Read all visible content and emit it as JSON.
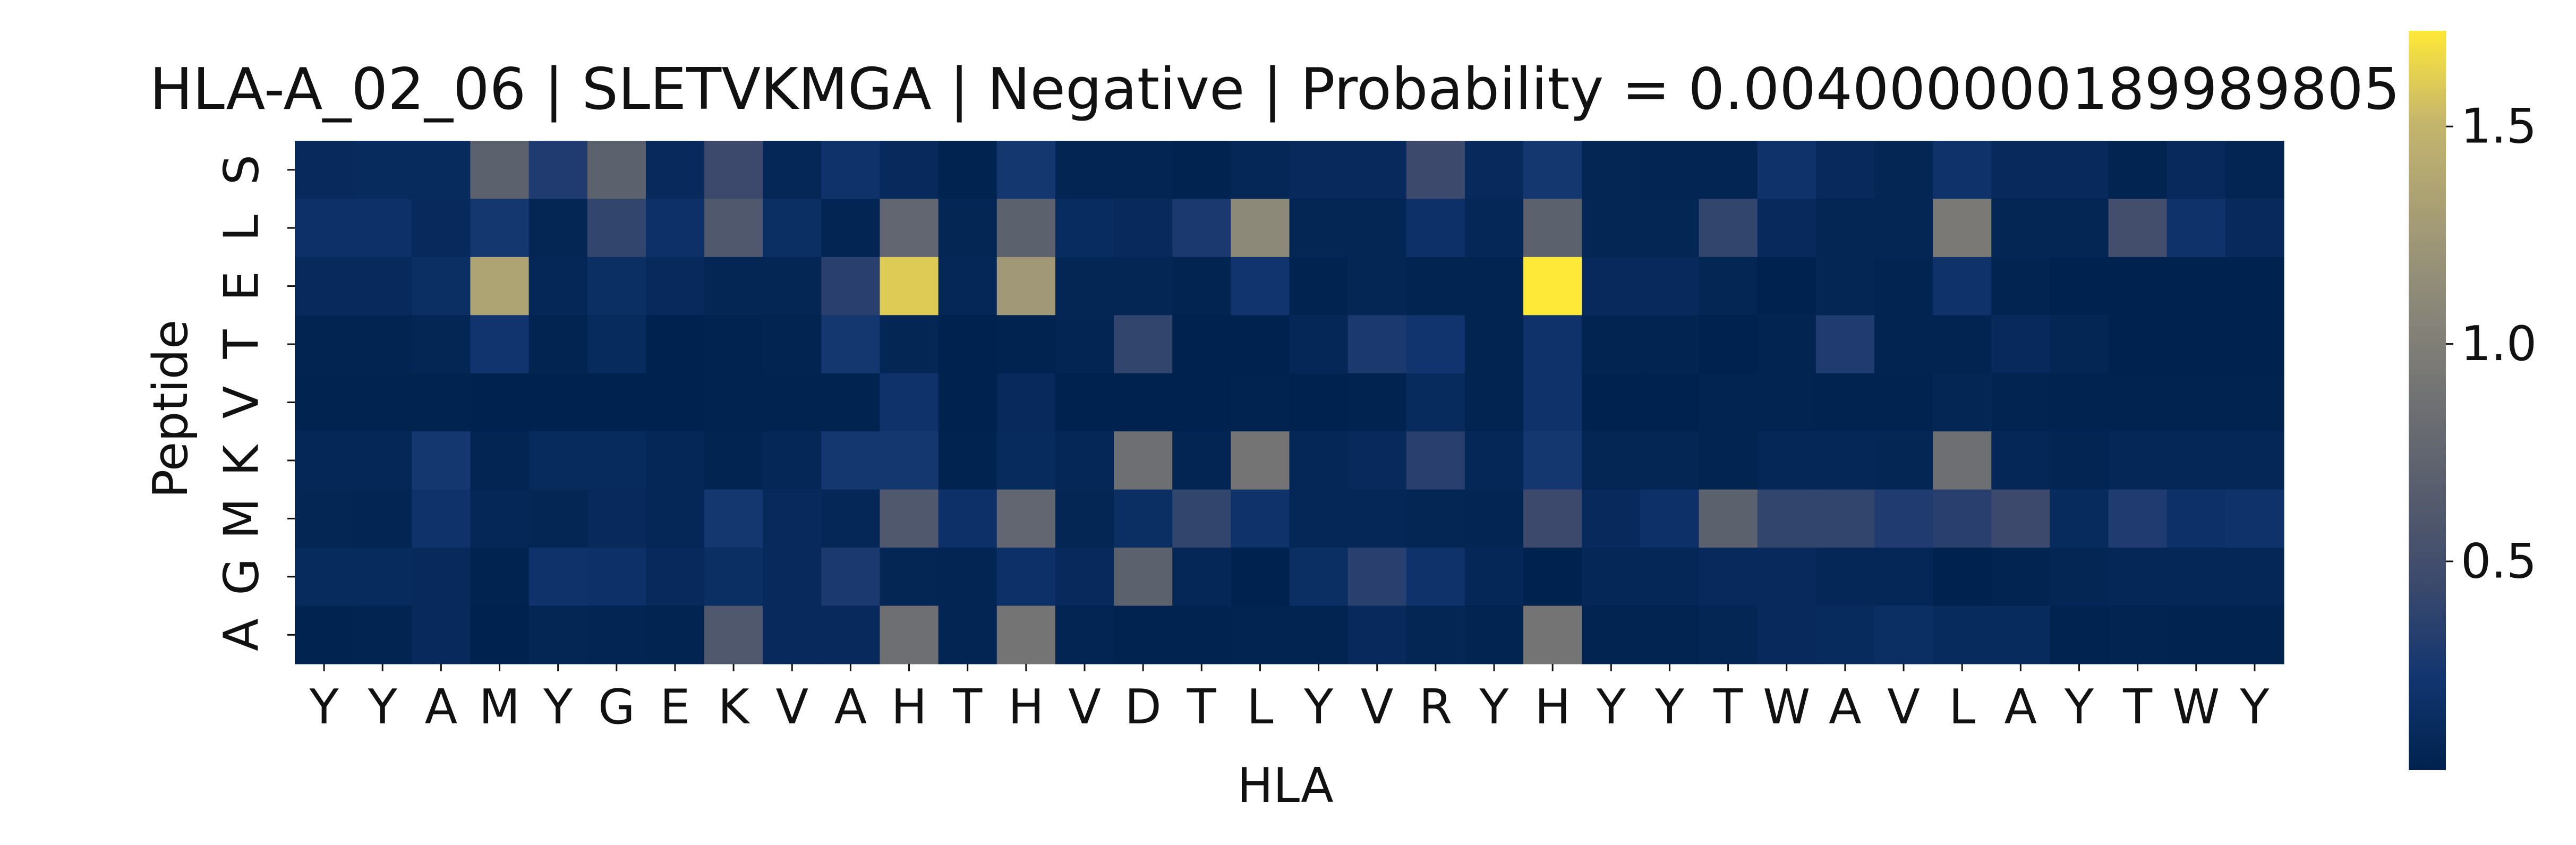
{
  "chart_data": {
    "type": "heatmap",
    "title": "HLA-A_02_06 | SLETVKMGA | Negative | Probability = 0.004000000189989805",
    "xlabel": "HLA",
    "ylabel": "Peptide",
    "x_tick_labels": [
      "Y",
      "Y",
      "A",
      "M",
      "Y",
      "G",
      "E",
      "K",
      "V",
      "A",
      "H",
      "T",
      "H",
      "V",
      "D",
      "T",
      "L",
      "Y",
      "V",
      "R",
      "Y",
      "H",
      "Y",
      "Y",
      "T",
      "W",
      "A",
      "V",
      "L",
      "A",
      "Y",
      "T",
      "W",
      "Y"
    ],
    "y_tick_labels": [
      "S",
      "L",
      "E",
      "T",
      "V",
      "K",
      "M",
      "G",
      "A"
    ],
    "colormap": "cividis",
    "colorbar": {
      "min": 0.02,
      "max": 1.72,
      "ticks": [
        0.5,
        1.0,
        1.5
      ],
      "tick_labels": [
        "0.5",
        "1.0",
        "1.5"
      ]
    },
    "values": [
      [
        0.1,
        0.12,
        0.12,
        0.7,
        0.3,
        0.7,
        0.1,
        0.45,
        0.08,
        0.2,
        0.1,
        0.03,
        0.25,
        0.05,
        0.05,
        0.03,
        0.08,
        0.1,
        0.1,
        0.45,
        0.1,
        0.25,
        0.06,
        0.05,
        0.05,
        0.2,
        0.1,
        0.06,
        0.2,
        0.1,
        0.1,
        0.04,
        0.1,
        0.05
      ],
      [
        0.18,
        0.18,
        0.1,
        0.25,
        0.06,
        0.4,
        0.18,
        0.6,
        0.15,
        0.05,
        0.75,
        0.06,
        0.7,
        0.13,
        0.1,
        0.28,
        1.1,
        0.06,
        0.06,
        0.18,
        0.08,
        0.7,
        0.06,
        0.06,
        0.4,
        0.1,
        0.06,
        0.06,
        0.95,
        0.06,
        0.06,
        0.5,
        0.2,
        0.1
      ],
      [
        0.1,
        0.1,
        0.15,
        1.35,
        0.08,
        0.15,
        0.1,
        0.06,
        0.06,
        0.35,
        1.6,
        0.08,
        1.25,
        0.06,
        0.06,
        0.04,
        0.22,
        0.03,
        0.06,
        0.04,
        0.04,
        1.72,
        0.1,
        0.1,
        0.06,
        0.02,
        0.06,
        0.04,
        0.2,
        0.04,
        0.02,
        0.02,
        0.02,
        0.02
      ],
      [
        0.04,
        0.04,
        0.06,
        0.22,
        0.04,
        0.12,
        0.02,
        0.03,
        0.04,
        0.25,
        0.06,
        0.02,
        0.03,
        0.05,
        0.4,
        0.02,
        0.02,
        0.08,
        0.28,
        0.22,
        0.04,
        0.2,
        0.04,
        0.04,
        0.02,
        0.04,
        0.3,
        0.04,
        0.04,
        0.1,
        0.06,
        0.02,
        0.02,
        0.02
      ],
      [
        0.03,
        0.03,
        0.03,
        0.02,
        0.02,
        0.02,
        0.02,
        0.03,
        0.03,
        0.03,
        0.2,
        0.02,
        0.1,
        0.02,
        0.02,
        0.02,
        0.03,
        0.02,
        0.03,
        0.12,
        0.04,
        0.2,
        0.02,
        0.02,
        0.04,
        0.04,
        0.03,
        0.03,
        0.06,
        0.04,
        0.03,
        0.03,
        0.03,
        0.03
      ],
      [
        0.08,
        0.08,
        0.25,
        0.05,
        0.12,
        0.12,
        0.08,
        0.04,
        0.08,
        0.25,
        0.25,
        0.03,
        0.12,
        0.08,
        0.85,
        0.05,
        0.9,
        0.08,
        0.1,
        0.35,
        0.08,
        0.25,
        0.06,
        0.06,
        0.04,
        0.08,
        0.08,
        0.06,
        0.85,
        0.08,
        0.05,
        0.08,
        0.08,
        0.08
      ],
      [
        0.06,
        0.05,
        0.2,
        0.08,
        0.06,
        0.1,
        0.08,
        0.25,
        0.1,
        0.08,
        0.6,
        0.18,
        0.75,
        0.06,
        0.15,
        0.4,
        0.2,
        0.08,
        0.08,
        0.06,
        0.05,
        0.45,
        0.1,
        0.18,
        0.7,
        0.4,
        0.4,
        0.3,
        0.35,
        0.45,
        0.12,
        0.3,
        0.18,
        0.2
      ],
      [
        0.12,
        0.12,
        0.1,
        0.03,
        0.2,
        0.18,
        0.1,
        0.15,
        0.1,
        0.28,
        0.06,
        0.05,
        0.18,
        0.1,
        0.7,
        0.08,
        0.02,
        0.15,
        0.35,
        0.2,
        0.08,
        0.02,
        0.08,
        0.08,
        0.1,
        0.1,
        0.08,
        0.08,
        0.02,
        0.04,
        0.06,
        0.08,
        0.08,
        0.08
      ],
      [
        0.03,
        0.04,
        0.1,
        0.02,
        0.06,
        0.05,
        0.04,
        0.6,
        0.1,
        0.1,
        0.85,
        0.05,
        0.9,
        0.05,
        0.03,
        0.03,
        0.04,
        0.04,
        0.1,
        0.06,
        0.04,
        0.9,
        0.04,
        0.04,
        0.06,
        0.1,
        0.12,
        0.15,
        0.12,
        0.12,
        0.03,
        0.04,
        0.03,
        0.03
      ]
    ]
  }
}
